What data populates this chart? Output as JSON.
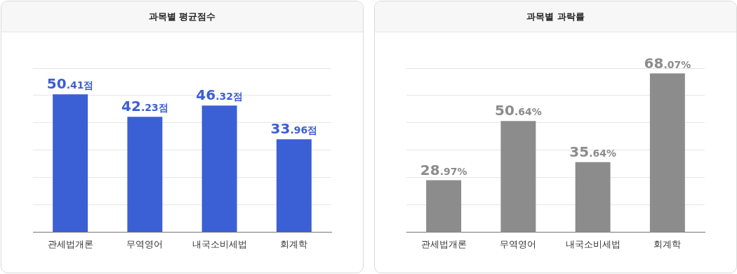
{
  "chart_data": [
    {
      "type": "bar",
      "title": "과목별 평균점수",
      "categories": [
        "관세법개론",
        "무역영어",
        "내국소비세법",
        "회계학"
      ],
      "values": [
        50.41,
        42.23,
        46.32,
        33.96
      ],
      "color": "#3b5fd4",
      "value_labels": [
        "50.41점",
        "42.23점",
        "46.32점",
        "33.96점"
      ],
      "ylim": [
        0,
        60
      ],
      "yticks": [
        {
          "value": 0,
          "label": null
        },
        {
          "value": 10,
          "label": null
        },
        {
          "value": 20,
          "label": null
        },
        {
          "value": 30,
          "label": null
        },
        {
          "value": 40,
          "label": null
        },
        {
          "value": 50,
          "label": null
        },
        {
          "value": 60,
          "label": null
        }
      ],
      "tick_labels": "x",
      "grid": "y",
      "legend": false
    },
    {
      "type": "bar",
      "title": "과목별 과락률",
      "categories": [
        "관세법개론",
        "무역영어",
        "내국소비세법",
        "회계학"
      ],
      "values": [
        28.97,
        50.64,
        35.64,
        68.07
      ],
      "color": "#8c8c8c",
      "value_labels": [
        "28.97%",
        "50.64%",
        "35.64%",
        "68.07%"
      ],
      "ylim": [
        10,
        70
      ],
      "yticks": [
        {
          "value": 10,
          "label": null
        },
        {
          "value": 20,
          "label": null
        },
        {
          "value": 30,
          "label": null
        },
        {
          "value": 40,
          "label": null
        },
        {
          "value": 50,
          "label": null
        },
        {
          "value": 60,
          "label": null
        },
        {
          "value": 70,
          "label": null
        }
      ],
      "tick_labels": "x",
      "grid": "y",
      "legend": false
    }
  ]
}
